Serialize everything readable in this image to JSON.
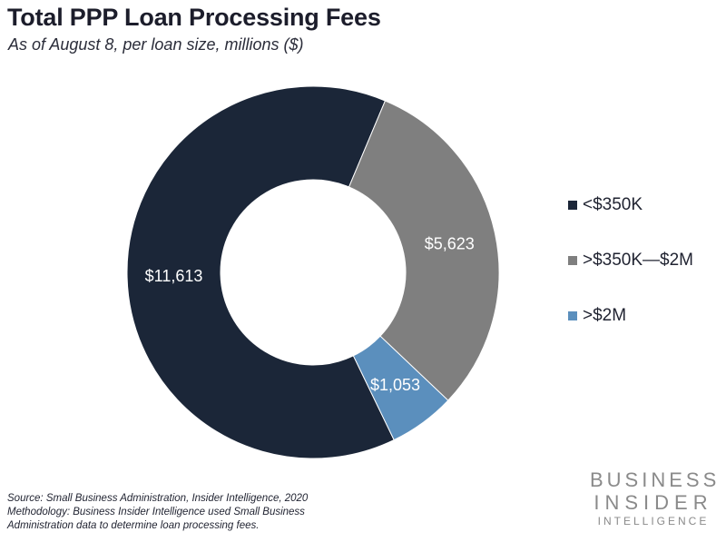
{
  "chart_data": {
    "type": "pie",
    "title": "Total PPP Loan Processing Fees",
    "subtitle": "As of August 8, per loan size, millions ($)",
    "categories": [
      "<$350K",
      ">$350K—$2M",
      ">$2M"
    ],
    "values": [
      11613,
      5623,
      1053
    ],
    "data_labels": [
      "$11,613",
      "$5,623",
      "$1,053"
    ],
    "colors": [
      "#1b2638",
      "#7f7f7f",
      "#5b8fbd"
    ],
    "donut": true,
    "legend_position": "right"
  },
  "footer": {
    "source": "Source: Small Business Administration,  Insider Intelligence, 2020",
    "methodology": "Methodology: Business Insider Intelligence used Small Business Administration data to determine loan processing fees."
  },
  "brand": {
    "line1": "BUSINESS",
    "line2": "INSIDER",
    "line3": "INTELLIGENCE"
  }
}
